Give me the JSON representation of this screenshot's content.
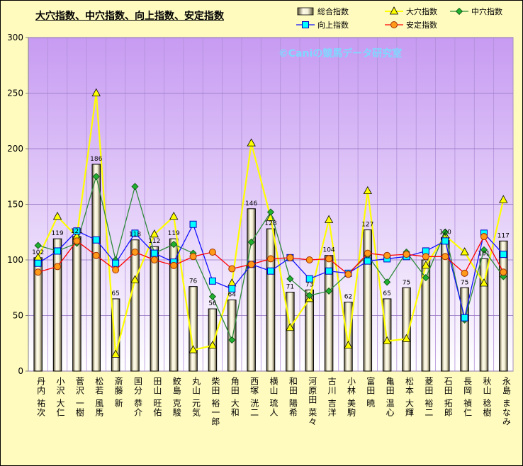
{
  "chart_data": {
    "type": "bar",
    "title": "大穴指数、中穴指数、向上指数、安定指数",
    "watermark": "©Caniの競馬データ研究室",
    "ylim": [
      0,
      300
    ],
    "yticks": [
      0,
      50,
      100,
      150,
      200,
      250,
      300
    ],
    "grid": true,
    "legend_position": "top-right",
    "categories": [
      "丹内 祐次",
      "小沢 大仁",
      "菅沢 一樹",
      "松若 風馬",
      "斎藤 新",
      "国分 恭介",
      "田山 旺佑",
      "鮫島 克駿",
      "丸山 元気",
      "柴田 裕一郎",
      "角田 大和",
      "西塚 洸二",
      "横山 琉人",
      "和田 陽希",
      "河原田 菜々",
      "古川 吉洋",
      "小林 美駒",
      "富田 暁",
      "亀田 温心",
      "松本 大輝",
      "菱田 裕二",
      "石田 拓郎",
      "長岡 禎仁",
      "秋山 稔樹",
      "永島 まなみ"
    ],
    "series": [
      {
        "name": "総合指数",
        "kind": "bar",
        "color": "#c8c0a0",
        "values": [
          102,
          119,
          121,
          186,
          65,
          118,
          112,
          119,
          76,
          56,
          64,
          146,
          128,
          71,
          73,
          104,
          62,
          127,
          65,
          75,
          100,
          120,
          75,
          101,
          117
        ],
        "labels": [
          "102",
          "119",
          "121",
          "186",
          "65",
          "118",
          "112",
          "119",
          "76",
          "56",
          "64",
          "146",
          "128",
          "71",
          "73",
          "104",
          "62",
          "127",
          "65",
          "75",
          "",
          "120",
          "75",
          "101",
          "117"
        ]
      },
      {
        "name": "大穴指数",
        "kind": "line",
        "marker": "triangle",
        "color": "#ffff00",
        "values": [
          102,
          139,
          121,
          250,
          15,
          82,
          123,
          139,
          19,
          23,
          79,
          205,
          138,
          39,
          65,
          136,
          23,
          162,
          27,
          29,
          95,
          122,
          107,
          79,
          154
        ]
      },
      {
        "name": "中穴指数",
        "kind": "line",
        "marker": "diamond",
        "color": "#2e8b3a",
        "values": [
          113,
          108,
          115,
          175,
          100,
          166,
          106,
          114,
          106,
          67,
          28,
          116,
          143,
          83,
          68,
          72,
          88,
          104,
          80,
          107,
          84,
          125,
          46,
          109,
          85
        ]
      },
      {
        "name": "向上指数",
        "kind": "line",
        "marker": "square",
        "color": "#1010ff",
        "values": [
          97,
          108,
          126,
          118,
          97,
          124,
          106,
          98,
          132,
          81,
          74,
          96,
          90,
          102,
          83,
          90,
          88,
          99,
          101,
          103,
          108,
          117,
          48,
          124,
          105
        ]
      },
      {
        "name": "安定指数",
        "kind": "line",
        "marker": "circle",
        "color": "#ff0000",
        "values": [
          89,
          94,
          117,
          104,
          91,
          107,
          100,
          95,
          103,
          107,
          92,
          96,
          101,
          102,
          100,
          101,
          87,
          106,
          104,
          105,
          103,
          103,
          88,
          121,
          89
        ]
      }
    ]
  }
}
